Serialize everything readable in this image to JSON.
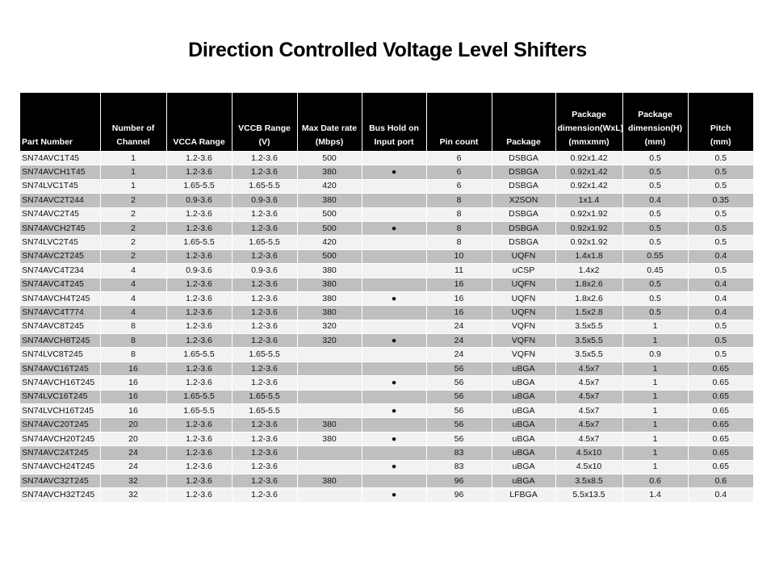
{
  "title": "Direction Controlled Voltage Level Shifters",
  "table": {
    "headers": [
      "Part Number",
      "Number of\nChannel",
      "VCCA Range",
      "VCCB Range\n(V)",
      "Max Date rate\n(Mbps)",
      "Bus Hold on\nInput port\n ",
      "Pin count",
      "Package",
      "Package\ndimension(WxL)\n(mmxmm)",
      "Package\ndimension(H)\n(mm)",
      "Pitch\n(mm)"
    ],
    "rows": [
      [
        "SN74AVC1T45",
        "1",
        "1.2-3.6",
        "1.2-3.6",
        "500",
        "",
        "6",
        "DSBGA",
        "0.92x1.42",
        "0.5",
        "0.5"
      ],
      [
        "SN74AVCH1T45",
        "1",
        "1.2-3.6",
        "1.2-3.6",
        "380",
        "●",
        "6",
        "DSBGA",
        "0.92x1.42",
        "0.5",
        "0.5"
      ],
      [
        "SN74LVC1T45",
        "1",
        "1.65-5.5",
        "1.65-5.5",
        "420",
        "",
        "6",
        "DSBGA",
        "0.92x1.42",
        "0.5",
        "0.5"
      ],
      [
        "SN74AVC2T244",
        "2",
        "0.9-3.6",
        "0.9-3.6",
        "380",
        "",
        "8",
        "X2SON",
        "1x1.4",
        "0.4",
        "0.35"
      ],
      [
        "SN74AVC2T45",
        "2",
        "1.2-3.6",
        "1.2-3.6",
        "500",
        "",
        "8",
        "DSBGA",
        "0.92x1.92",
        "0.5",
        "0.5"
      ],
      [
        "SN74AVCH2T45",
        "2",
        "1.2-3.6",
        "1.2-3.6",
        "500",
        "●",
        "8",
        "DSBGA",
        "0.92x1.92",
        "0.5",
        "0.5"
      ],
      [
        "SN74LVC2T45",
        "2",
        "1.65-5.5",
        "1.65-5.5",
        "420",
        "",
        "8",
        "DSBGA",
        "0.92x1.92",
        "0.5",
        "0.5"
      ],
      [
        "SN74AVC2T245",
        "2",
        "1.2-3.6",
        "1.2-3.6",
        "500",
        "",
        "10",
        "UQFN",
        "1.4x1.8",
        "0.55",
        "0.4"
      ],
      [
        "SN74AVC4T234",
        "4",
        "0.9-3.6",
        "0.9-3.6",
        "380",
        "",
        "11",
        "uCSP",
        "1.4x2",
        "0.45",
        "0.5"
      ],
      [
        "SN74AVC4T245",
        "4",
        "1.2-3.6",
        "1.2-3.6",
        "380",
        "",
        "16",
        "UQFN",
        "1.8x2.6",
        "0.5",
        "0.4"
      ],
      [
        "SN74AVCH4T245",
        "4",
        "1.2-3.6",
        "1.2-3.6",
        "380",
        "●",
        "16",
        "UQFN",
        "1.8x2.6",
        "0.5",
        "0.4"
      ],
      [
        "SN74AVC4T774",
        "4",
        "1.2-3.6",
        "1.2-3.6",
        "380",
        "",
        "16",
        "UQFN",
        "1.5x2.8",
        "0.5",
        "0.4"
      ],
      [
        "SN74AVC8T245",
        "8",
        "1.2-3.6",
        "1.2-3.6",
        "320",
        "",
        "24",
        "VQFN",
        "3.5x5.5",
        "1",
        "0.5"
      ],
      [
        "SN74AVCH8T245",
        "8",
        "1.2-3.6",
        "1.2-3.6",
        "320",
        "●",
        "24",
        "VQFN",
        "3.5x5.5",
        "1",
        "0.5"
      ],
      [
        "SN74LVC8T245",
        "8",
        "1.65-5.5",
        "1.65-5.5",
        "",
        "",
        "24",
        "VQFN",
        "3.5x5.5",
        "0.9",
        "0.5"
      ],
      [
        "SN74AVC16T245",
        "16",
        "1.2-3.6",
        "1.2-3.6",
        "",
        "",
        "56",
        "uBGA",
        "4.5x7",
        "1",
        "0.65"
      ],
      [
        "SN74AVCH16T245",
        "16",
        "1.2-3.6",
        "1.2-3.6",
        "",
        "●",
        "56",
        "uBGA",
        "4.5x7",
        "1",
        "0.65"
      ],
      [
        "SN74LVC16T245",
        "16",
        "1.65-5.5",
        "1.65-5.5",
        "",
        "",
        "56",
        "uBGA",
        "4.5x7",
        "1",
        "0.65"
      ],
      [
        "SN74LVCH16T245",
        "16",
        "1.65-5.5",
        "1.65-5.5",
        "",
        "●",
        "56",
        "uBGA",
        "4.5x7",
        "1",
        "0.65"
      ],
      [
        "SN74AVC20T245",
        "20",
        "1.2-3.6",
        "1.2-3.6",
        "380",
        "",
        "56",
        "uBGA",
        "4.5x7",
        "1",
        "0.65"
      ],
      [
        "SN74AVCH20T245",
        "20",
        "1.2-3.6",
        "1.2-3.6",
        "380",
        "●",
        "56",
        "uBGA",
        "4.5x7",
        "1",
        "0.65"
      ],
      [
        "SN74AVC24T245",
        "24",
        "1.2-3.6",
        "1.2-3.6",
        "",
        "",
        "83",
        "uBGA",
        "4.5x10",
        "1",
        "0.65"
      ],
      [
        "SN74AVCH24T245",
        "24",
        "1.2-3.6",
        "1.2-3.6",
        "",
        "●",
        "83",
        "uBGA",
        "4.5x10",
        "1",
        "0.65"
      ],
      [
        "SN74AVC32T245",
        "32",
        "1.2-3.6",
        "1.2-3.6",
        "380",
        "",
        "96",
        "uBGA",
        "3.5x8.5",
        "0.6",
        "0.6"
      ],
      [
        "SN74AVCH32T245",
        "32",
        "1.2-3.6",
        "1.2-3.6",
        "",
        "●",
        "96",
        "LFBGA",
        "5.5x13.5",
        "1.4",
        "0.4"
      ]
    ]
  },
  "colors": {
    "header_bg": "#000000",
    "row_light": "#f2f2f2",
    "row_dark": "#bfbfbf"
  }
}
